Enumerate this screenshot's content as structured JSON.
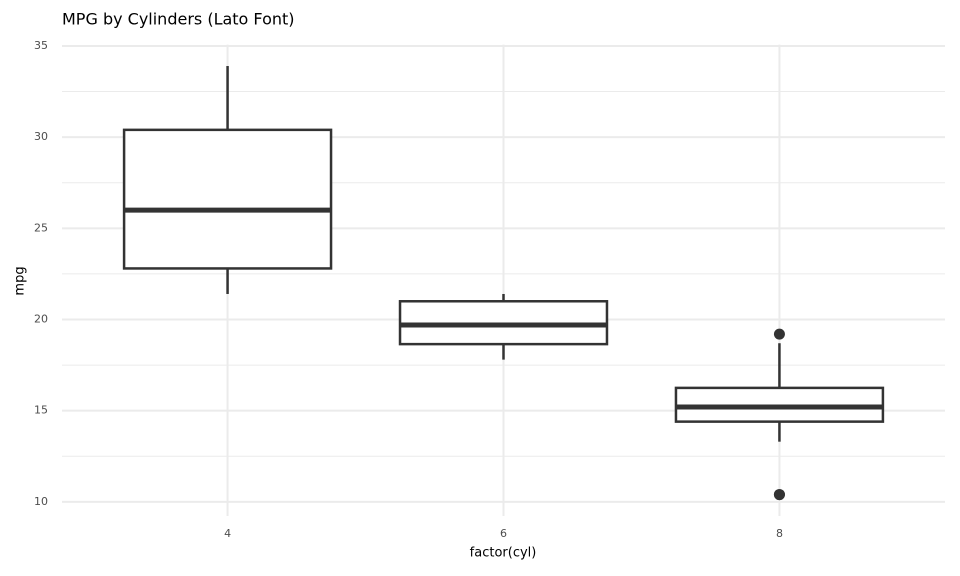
{
  "chart_data": {
    "type": "boxplot",
    "title": "MPG by Cylinders (Lato Font)",
    "x_label": "factor(cyl)",
    "y_label": "mpg",
    "categories": [
      "4",
      "6",
      "8"
    ],
    "boxes": [
      {
        "min": 21.4,
        "q1": 22.8,
        "median": 26.0,
        "q3": 30.4,
        "max": 33.9,
        "outliers": []
      },
      {
        "min": 17.8,
        "q1": 18.65,
        "median": 19.7,
        "q3": 21.0,
        "max": 21.4,
        "outliers": []
      },
      {
        "min": 13.3,
        "q1": 14.4,
        "median": 15.2,
        "q3": 16.25,
        "max": 18.7,
        "outliers": [
          10.4,
          10.4,
          19.2
        ]
      }
    ],
    "color": "#333333",
    "ylim": [
      9.225,
      35.075
    ],
    "yticks": [
      10,
      15,
      20,
      25,
      30,
      35
    ],
    "y_minor_ticks": [
      12.5,
      17.5,
      22.5,
      27.5,
      32.5
    ],
    "grid": true
  }
}
